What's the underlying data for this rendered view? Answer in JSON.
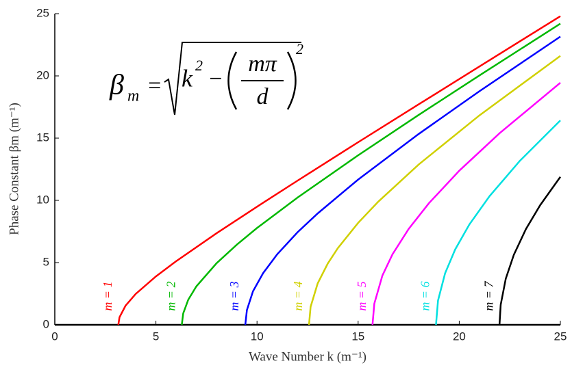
{
  "chart_data": {
    "type": "line",
    "x_label": "Wave Number k (m⁻¹)",
    "y_label": "Phase Constant βm (m⁻¹)",
    "equation": {
      "lhs": "β",
      "sub": "m",
      "eq": "=",
      "k": "k",
      "exp": "2",
      "minus": "−",
      "num": "mπ",
      "den": "d",
      "exp2": "2"
    },
    "xlim": [
      0,
      25
    ],
    "ylim": [
      0,
      25
    ],
    "xticks": [
      0,
      5,
      10,
      15,
      20,
      25
    ],
    "yticks": [
      0,
      5,
      10,
      15,
      20,
      25
    ],
    "grid": false,
    "series": [
      {
        "name": "m = 1",
        "color": "#ff0000",
        "x": [
          3.14,
          3.2,
          3.5,
          4,
          5,
          6,
          8,
          10,
          12,
          15,
          18,
          21,
          25
        ],
        "values": [
          0,
          0.61,
          1.54,
          2.48,
          3.89,
          5.11,
          7.36,
          9.49,
          11.58,
          14.67,
          17.72,
          20.76,
          24.8
        ]
      },
      {
        "name": "m = 2",
        "color": "#00b800",
        "x": [
          6.28,
          6.35,
          6.6,
          7,
          8,
          9,
          10,
          12,
          15,
          18,
          21,
          25
        ],
        "values": [
          0,
          0.92,
          2.02,
          3.09,
          4.95,
          6.44,
          7.78,
          10.22,
          13.62,
          16.87,
          20.04,
          24.2
        ]
      },
      {
        "name": "m = 3",
        "color": "#0000ff",
        "x": [
          9.42,
          9.5,
          9.8,
          10.3,
          11,
          12,
          13,
          15,
          18,
          21,
          25
        ],
        "values": [
          0,
          1.19,
          2.69,
          4.15,
          5.67,
          7.43,
          8.95,
          11.67,
          15.34,
          18.77,
          23.16
        ]
      },
      {
        "name": "m = 4",
        "color": "#d0d000",
        "x": [
          12.57,
          12.65,
          13,
          13.5,
          14,
          15,
          16,
          18,
          21,
          25
        ],
        "values": [
          0,
          1.45,
          3.33,
          4.93,
          6.17,
          8.19,
          9.9,
          12.89,
          16.83,
          21.61
        ]
      },
      {
        "name": "m = 5",
        "color": "#ff00ff",
        "x": [
          15.71,
          15.8,
          16.2,
          16.7,
          17.5,
          18.5,
          20,
          22,
          25
        ],
        "values": [
          0,
          1.7,
          3.96,
          5.67,
          7.71,
          9.77,
          12.38,
          15.4,
          19.45
        ]
      },
      {
        "name": "m = 6",
        "color": "#00e0e0",
        "x": [
          18.85,
          18.95,
          19.3,
          19.8,
          20.5,
          21.5,
          23,
          25
        ],
        "values": [
          0,
          1.95,
          4.14,
          6.06,
          8.06,
          10.34,
          13.18,
          16.42
        ]
      },
      {
        "name": "m = 7",
        "color": "#000000",
        "x": [
          21.99,
          22.05,
          22.3,
          22.7,
          23.3,
          24,
          25
        ],
        "values": [
          0,
          1.61,
          3.7,
          5.63,
          7.7,
          9.61,
          11.89
        ]
      }
    ]
  }
}
